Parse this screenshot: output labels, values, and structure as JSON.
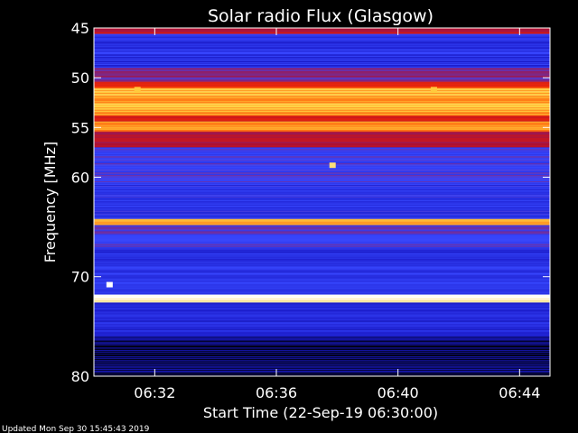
{
  "chart_data": {
    "type": "heatmap",
    "title": "Solar radio Flux (Glasgow)",
    "xlabel": "Start Time (22-Sep-19 06:30:00)",
    "ylabel": "Frequency [MHz]",
    "xlim": [
      "06:30:00",
      "06:45:00"
    ],
    "ylim": [
      45,
      80
    ],
    "y_inverted": true,
    "x_ticks": [
      "06:32",
      "06:36",
      "06:40",
      "06:44"
    ],
    "y_ticks": [
      "45",
      "50",
      "55",
      "60",
      "70",
      "80"
    ],
    "colormap": [
      "#000010",
      "#1a1ac8",
      "#3848ff",
      "#b01030",
      "#e02010",
      "#ff5000",
      "#ffd040",
      "#ffffff"
    ],
    "bands": [
      {
        "from_mhz": 45.0,
        "to_mhz": 45.6,
        "level": 0.45
      },
      {
        "from_mhz": 45.6,
        "to_mhz": 49.0,
        "level": 0.22
      },
      {
        "from_mhz": 49.0,
        "to_mhz": 50.4,
        "level": 0.38
      },
      {
        "from_mhz": 50.4,
        "to_mhz": 51.0,
        "level": 0.62
      },
      {
        "from_mhz": 51.0,
        "to_mhz": 53.8,
        "level": 0.82
      },
      {
        "from_mhz": 53.8,
        "to_mhz": 54.4,
        "level": 0.55
      },
      {
        "from_mhz": 54.4,
        "to_mhz": 55.4,
        "level": 0.78
      },
      {
        "from_mhz": 55.4,
        "to_mhz": 57.0,
        "level": 0.45
      },
      {
        "from_mhz": 57.0,
        "to_mhz": 60.5,
        "level": 0.28
      },
      {
        "from_mhz": 60.5,
        "to_mhz": 64.2,
        "level": 0.24
      },
      {
        "from_mhz": 64.2,
        "to_mhz": 64.8,
        "level": 0.8
      },
      {
        "from_mhz": 64.8,
        "to_mhz": 67.0,
        "level": 0.3
      },
      {
        "from_mhz": 67.0,
        "to_mhz": 71.8,
        "level": 0.22
      },
      {
        "from_mhz": 71.8,
        "to_mhz": 72.6,
        "level": 0.97
      },
      {
        "from_mhz": 72.6,
        "to_mhz": 76.0,
        "level": 0.2
      },
      {
        "from_mhz": 76.0,
        "to_mhz": 80.0,
        "level": 0.06
      }
    ],
    "bursts": [
      {
        "time": "06:37:50",
        "freq_mhz": 58.8,
        "level": 0.9
      },
      {
        "time": "06:31:25",
        "freq_mhz": 51.2,
        "level": 0.85
      },
      {
        "time": "06:41:10",
        "freq_mhz": 51.2,
        "level": 0.85
      },
      {
        "time": "06:30:30",
        "freq_mhz": 70.8,
        "level": 1.0
      }
    ]
  },
  "footer": {
    "updated": "Updated Mon Sep 30 15:45:43 2019"
  }
}
